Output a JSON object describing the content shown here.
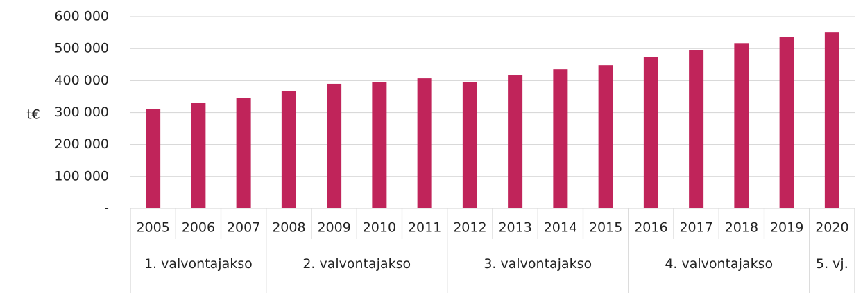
{
  "chart_data": {
    "type": "bar",
    "y_label": "t€",
    "categories": [
      "2005",
      "2006",
      "2007",
      "2008",
      "2009",
      "2010",
      "2011",
      "2012",
      "2013",
      "2014",
      "2015",
      "2016",
      "2017",
      "2018",
      "2019",
      "2020"
    ],
    "values": [
      310000,
      330000,
      346000,
      368000,
      390000,
      396000,
      407000,
      396000,
      418000,
      435000,
      448000,
      474000,
      496000,
      517000,
      537000,
      552000
    ],
    "color": "#c0245a",
    "groups": [
      {
        "label": "1. valvontajakso",
        "span": 3
      },
      {
        "label": "2. valvontajakso",
        "span": 4
      },
      {
        "label": "3. valvontajakso",
        "span": 4
      },
      {
        "label": "4. valvontajakso",
        "span": 4
      },
      {
        "label": "5. vj.",
        "span": 1
      }
    ],
    "ylim": [
      0,
      600000
    ],
    "yticks": [
      {
        "value": 0,
        "label": "-"
      },
      {
        "value": 100000,
        "label": "100 000"
      },
      {
        "value": 200000,
        "label": "200 000"
      },
      {
        "value": 300000,
        "label": "300 000"
      },
      {
        "value": 400000,
        "label": "400 000"
      },
      {
        "value": 500000,
        "label": "500 000"
      },
      {
        "value": 600000,
        "label": "600 000"
      }
    ],
    "grid": true
  }
}
